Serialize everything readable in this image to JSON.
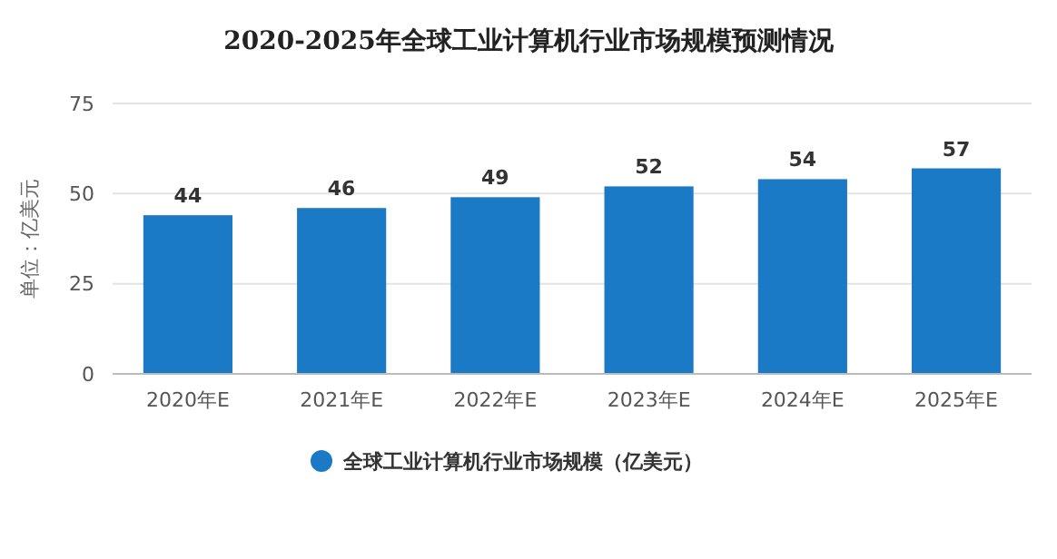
{
  "chart_data": {
    "type": "bar",
    "title": "2020-2025年全球工业计算机行业市场规模预测情况",
    "ylabel": "单位：亿美元",
    "categories": [
      "2020年E",
      "2021年E",
      "2022年E",
      "2023年E",
      "2024年E",
      "2025年E"
    ],
    "series": [
      {
        "name": "全球工业计算机行业市场规模（亿美元）",
        "color": "#1a7ac6",
        "values": [
          44,
          46,
          49,
          52,
          54,
          57
        ]
      }
    ],
    "ylim": [
      0,
      75
    ],
    "yticks": [
      0,
      25,
      50,
      75
    ],
    "grid": "y",
    "legend": "bottom",
    "data_labels": true
  }
}
